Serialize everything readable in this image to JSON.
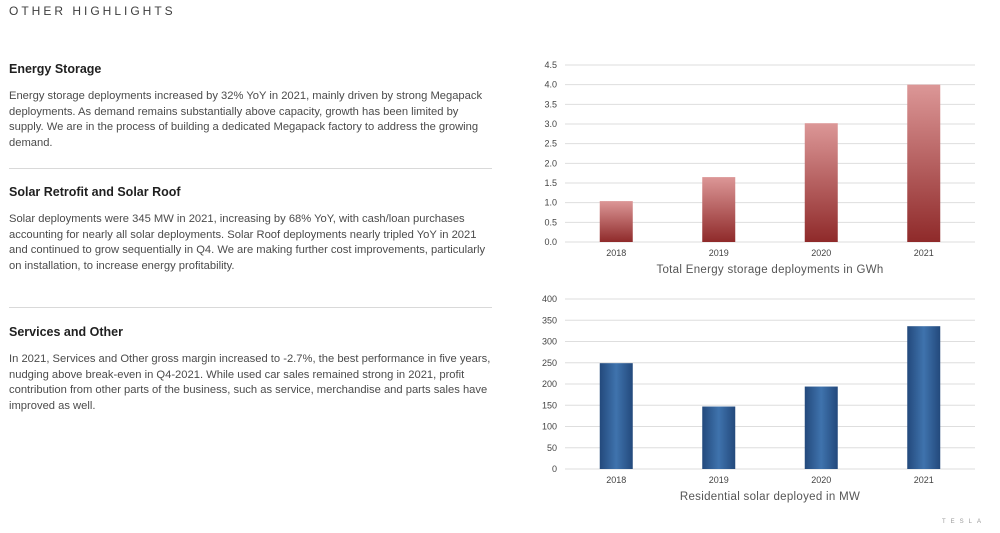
{
  "page_heading": "OTHER HIGHLIGHTS",
  "sections": [
    {
      "title": "Energy Storage",
      "body": "Energy storage deployments increased by 32% YoY in 2021, mainly driven by strong Megapack deployments. As demand remains substantially above capacity, growth has been limited by supply.  We are in the process of building a dedicated Megapack factory to address the growing demand."
    },
    {
      "title": "Solar Retrofit and Solar Roof",
      "body": "Solar deployments were 345 MW in 2021, increasing by 68% YoY, with cash/loan purchases accounting for nearly all solar deployments. Solar Roof deployments nearly tripled YoY in 2021 and continued to grow sequentially in Q4. We are making further cost improvements, particularly on installation, to increase energy profitability."
    },
    {
      "title": "Services and Other",
      "body": "In 2021, Services and Other gross margin increased to -2.7%, the best performance in five years, nudging above break-even in Q4-2021. While used car sales remained strong in 2021, profit contribution from other parts of the business, such as service, merchandise and parts sales have improved as well."
    }
  ],
  "chart_data": [
    {
      "type": "bar",
      "title": "Total Energy storage deployments in GWh",
      "categories": [
        "2018",
        "2019",
        "2020",
        "2021"
      ],
      "values": [
        1.04,
        1.65,
        3.02,
        4.0
      ],
      "ylim": [
        0,
        4.5
      ],
      "yticks": [
        "0.0",
        "0.5",
        "1.0",
        "1.5",
        "2.0",
        "2.5",
        "3.0",
        "3.5",
        "4.0",
        "4.5"
      ],
      "xlabel": "",
      "ylabel": "",
      "grid": true,
      "color_top": "#dc9797",
      "color_bottom": "#8f2a2a"
    },
    {
      "type": "bar",
      "title": "Residential solar deployed in MW",
      "categories": [
        "2018",
        "2019",
        "2020",
        "2021"
      ],
      "values": [
        249,
        147,
        194,
        336
      ],
      "ylim": [
        0,
        400
      ],
      "yticks": [
        "0",
        "50",
        "100",
        "150",
        "200",
        "250",
        "300",
        "350",
        "400"
      ],
      "xlabel": "",
      "ylabel": "",
      "grid": true,
      "color_center": "#3f73ad",
      "color_edge": "#23497c"
    }
  ],
  "footer": {
    "logo_text": "TESLA"
  }
}
